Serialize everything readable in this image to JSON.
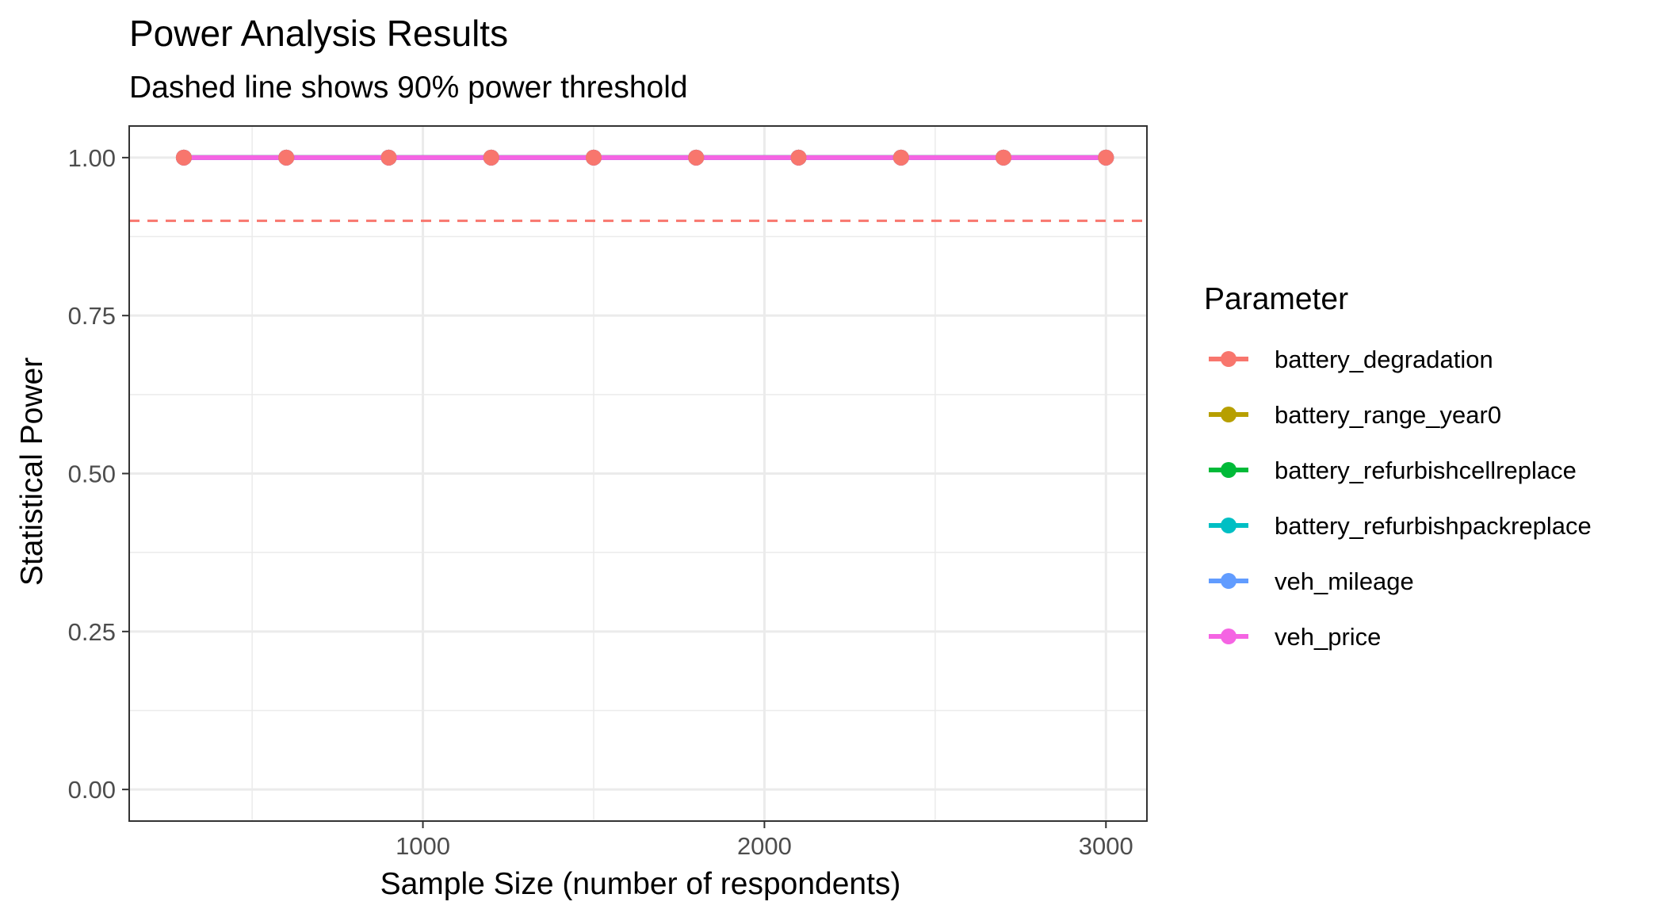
{
  "chart_data": {
    "type": "line",
    "title": "Power Analysis Results",
    "subtitle": "Dashed line shows 90% power threshold",
    "xlabel": "Sample Size (number of respondents)",
    "ylabel": "Statistical Power",
    "xlim": [
      140,
      3120
    ],
    "ylim": [
      -0.05,
      1.05
    ],
    "x_ticks": [
      1000,
      2000,
      3000
    ],
    "x_tick_labels": [
      "1000",
      "2000",
      "3000"
    ],
    "y_ticks": [
      0,
      0.25,
      0.5,
      0.75,
      1.0
    ],
    "y_tick_labels": [
      "0.00",
      "0.25",
      "0.50",
      "0.75",
      "1.00"
    ],
    "threshold": {
      "value": 0.9,
      "color": "#F8766D",
      "style": "dashed"
    },
    "grid": true,
    "legend_title": "Parameter",
    "legend_position": "right",
    "x": [
      300,
      600,
      900,
      1200,
      1500,
      1800,
      2100,
      2400,
      2700,
      3000
    ],
    "series": [
      {
        "name": "battery_degradation",
        "color": "#F8766D",
        "values": [
          1,
          1,
          1,
          1,
          1,
          1,
          1,
          1,
          1,
          1
        ]
      },
      {
        "name": "battery_range_year0",
        "color": "#B79F00",
        "values": [
          1,
          1,
          1,
          1,
          1,
          1,
          1,
          1,
          1,
          1
        ]
      },
      {
        "name": "battery_refurbishcellreplace",
        "color": "#00BA38",
        "values": [
          1,
          1,
          1,
          1,
          1,
          1,
          1,
          1,
          1,
          1
        ]
      },
      {
        "name": "battery_refurbishpackreplace",
        "color": "#00BFC4",
        "values": [
          1,
          1,
          1,
          1,
          1,
          1,
          1,
          1,
          1,
          1
        ]
      },
      {
        "name": "veh_mileage",
        "color": "#619CFF",
        "values": [
          1,
          1,
          1,
          1,
          1,
          1,
          1,
          1,
          1,
          1
        ]
      },
      {
        "name": "veh_price",
        "color": "#F564E3",
        "values": [
          1,
          1,
          1,
          1,
          1,
          1,
          1,
          1,
          1,
          1
        ]
      }
    ]
  }
}
